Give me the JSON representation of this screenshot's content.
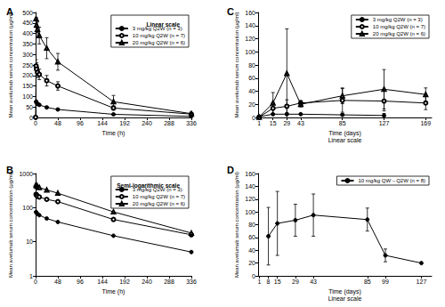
{
  "chart_data": [
    {
      "panel": "A",
      "type": "line",
      "legend_title": "Linear scale",
      "x_label": "Time (h)",
      "y_label": "Mean avelumab serum concentration (μg/ml)",
      "xlim": [
        0,
        336
      ],
      "xticks": [
        0,
        48,
        96,
        144,
        192,
        240,
        288,
        336
      ],
      "ylim": [
        0,
        500
      ],
      "yticks": [
        0,
        50,
        100,
        150,
        200,
        250,
        300,
        350,
        400,
        450,
        500
      ],
      "grid": false,
      "legend": "upper right",
      "series": [
        {
          "name": "3 mg/kg Q2W (n = 3)",
          "color": "#000000",
          "marker": "filled circle",
          "x": [
            1,
            2,
            4,
            8,
            24,
            48,
            168,
            336
          ],
          "values": [
            75,
            70,
            65,
            60,
            48,
            38,
            15,
            5
          ],
          "error": [
            8,
            8,
            6,
            6,
            5,
            5,
            3,
            1
          ]
        },
        {
          "name": "10 mg/kg Q2W (n = 7)",
          "color": "#000000",
          "marker": "open circle",
          "x": [
            0,
            1,
            2,
            4,
            8,
            24,
            48,
            168,
            336
          ],
          "values": [
            0.7,
            245,
            230,
            215,
            205,
            175,
            150,
            45,
            16
          ],
          "error": [
            null,
            30,
            30,
            25,
            25,
            25,
            20,
            10,
            5
          ]
        },
        {
          "name": "20 mg/kg Q2W (n = 6)",
          "color": "#000000",
          "marker": "open triangle",
          "x": [
            1,
            2,
            4,
            8,
            24,
            48,
            168,
            336
          ],
          "values": [
            470,
            440,
            420,
            390,
            330,
            265,
            75,
            18
          ],
          "error": [
            40,
            35,
            35,
            40,
            50,
            40,
            30,
            8
          ]
        }
      ]
    },
    {
      "panel": "B",
      "type": "line",
      "legend_title": "Semi-logarithmic scale",
      "x_label": "Time (h)",
      "y_label": "Mean avelumab serum concentration (μg/ml)",
      "xlim": [
        0,
        336
      ],
      "xticks": [
        0,
        48,
        96,
        144,
        192,
        240,
        288,
        336
      ],
      "ylim": [
        1,
        1000
      ],
      "yticks": [
        1,
        10,
        100,
        1000
      ],
      "log": "y",
      "grid": false,
      "legend": "upper right",
      "series": [
        {
          "name": "3 mg/kg Q2W (n = 3)",
          "color": "#000000",
          "marker": "filled circle",
          "x": [
            1,
            2,
            4,
            8,
            24,
            48,
            168,
            336
          ],
          "values": [
            75,
            70,
            65,
            60,
            48,
            38,
            15,
            5
          ]
        },
        {
          "name": "10 mg/kg Q2W (n = 7)",
          "color": "#000000",
          "marker": "open circle",
          "x": [
            1,
            2,
            4,
            8,
            24,
            48,
            168,
            336
          ],
          "values": [
            245,
            230,
            215,
            205,
            175,
            150,
            45,
            16
          ]
        },
        {
          "name": "20 mg/kg Q2W (n = 6)",
          "color": "#000000",
          "marker": "open triangle",
          "x": [
            1,
            2,
            4,
            8,
            24,
            48,
            168,
            336
          ],
          "values": [
            470,
            440,
            420,
            390,
            330,
            265,
            75,
            18
          ]
        }
      ]
    },
    {
      "panel": "C",
      "type": "line",
      "x_label": "Time (days)",
      "x_label_note": "Linear scale",
      "y_label": "Mean avelumab serum concentration (μg/ml)",
      "xlim": [
        0,
        175
      ],
      "xticks": [
        1,
        15,
        29,
        43,
        85,
        127,
        169
      ],
      "ylim": [
        0,
        160
      ],
      "yticks": [
        0,
        20,
        40,
        60,
        80,
        100,
        120,
        140,
        160
      ],
      "grid": false,
      "legend": "upper right",
      "series": [
        {
          "name": "3 mg/kg Q2W (n = 3)",
          "color": "#000000",
          "marker": "filled circle",
          "x": [
            1,
            15,
            29,
            43,
            85,
            127
          ],
          "values": [
            1,
            5,
            5,
            5,
            4,
            3
          ],
          "error": [
            null,
            1,
            1,
            1,
            2,
            3
          ]
        },
        {
          "name": "10 mg/kg Q2W (n = 7)",
          "color": "#000000",
          "marker": "open circle",
          "x": [
            1,
            15,
            29,
            43,
            85,
            127,
            169
          ],
          "values": [
            0.5,
            14,
            17,
            22,
            26,
            25,
            22
          ],
          "error": [
            null,
            8,
            10,
            4,
            18,
            15,
            10
          ]
        },
        {
          "name": "20 mg/kg Q2W (n = 6)",
          "color": "#000000",
          "marker": "open triangle",
          "x": [
            1,
            15,
            29,
            43,
            85,
            127,
            169
          ],
          "values": [
            0.5,
            22,
            67,
            20,
            33,
            43,
            35
          ],
          "error": [
            null,
            16,
            68,
            4,
            12,
            30,
            10
          ]
        }
      ]
    },
    {
      "panel": "D",
      "type": "line",
      "x_label": "Time (days)",
      "x_label_note": "Linear scale",
      "y_label": "Mean avelumab serum concentration (μg/ml)",
      "xlim": [
        0,
        135
      ],
      "xticks": [
        1,
        8,
        15,
        29,
        43,
        85,
        99,
        127
      ],
      "ylim": [
        0,
        160
      ],
      "yticks": [
        0,
        20,
        40,
        60,
        80,
        100,
        120,
        140,
        160
      ],
      "grid": false,
      "legend": "upper right",
      "series": [
        {
          "name": "10 mg/kg QW→Q2W (n = 8)",
          "color": "#000000",
          "marker": "filled circle",
          "x": [
            8,
            15,
            29,
            43,
            85,
            99,
            127
          ],
          "values": [
            62,
            82,
            87,
            95,
            88,
            32,
            20
          ],
          "error": [
            45,
            50,
            25,
            33,
            18,
            10,
            null
          ]
        }
      ]
    }
  ]
}
